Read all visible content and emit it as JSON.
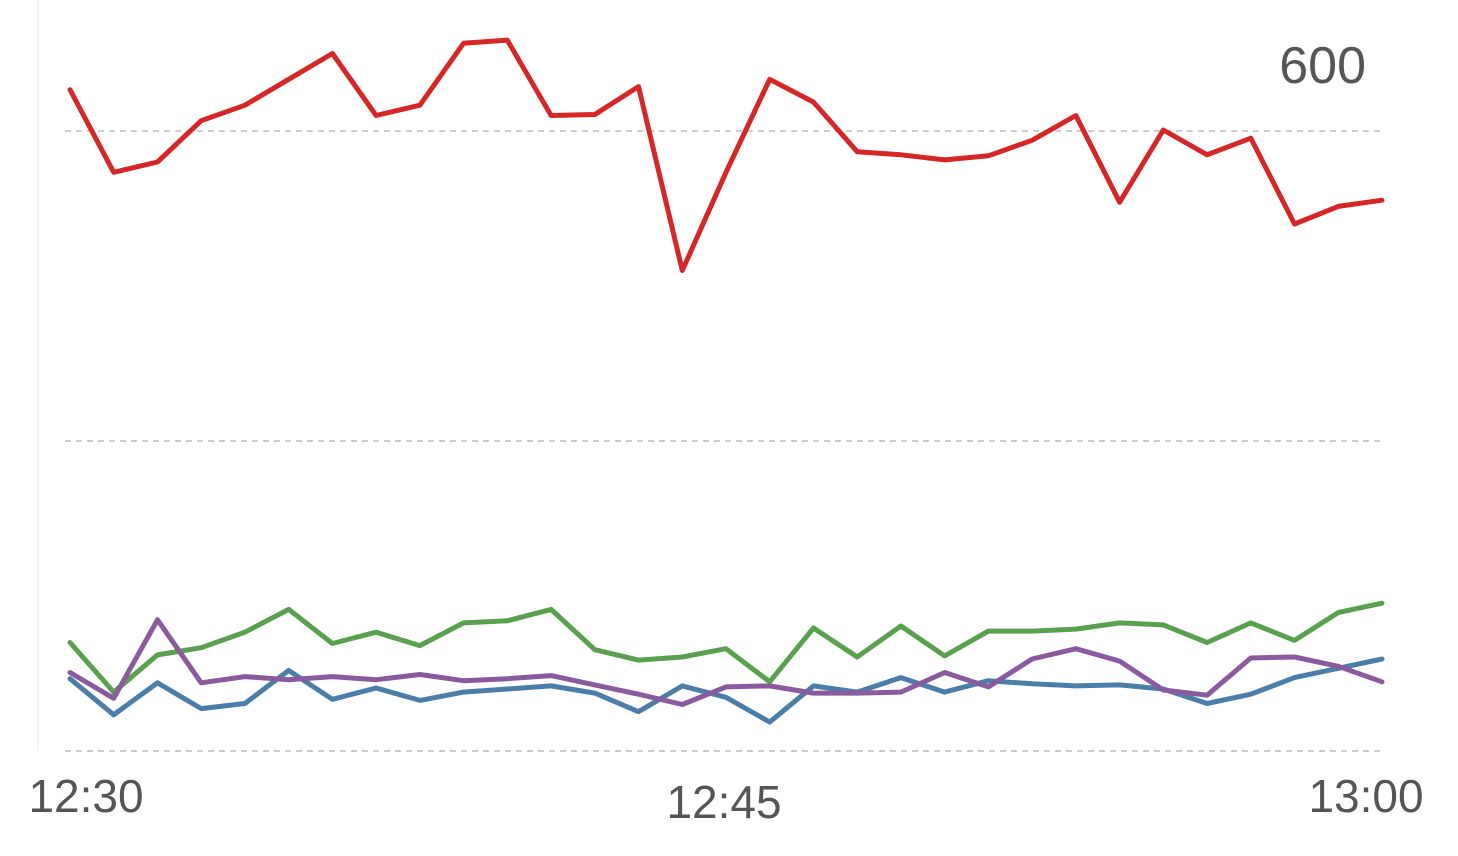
{
  "chart_data": {
    "type": "line",
    "x": [
      "12:30",
      "",
      "",
      "",
      "",
      "",
      "",
      "",
      "",
      "",
      "",
      "",
      "",
      "",
      "",
      "12:45",
      "",
      "",
      "",
      "",
      "",
      "",
      "",
      "",
      "",
      "",
      "",
      "",
      "",
      "",
      "13:00"
    ],
    "xticks": [
      {
        "index": 0,
        "label": "12:30"
      },
      {
        "index": 15,
        "label": "12:45"
      },
      {
        "index": 30,
        "label": "13:00"
      }
    ],
    "yticks": [
      {
        "value": 0,
        "label": ""
      },
      {
        "value": 300,
        "label": ""
      },
      {
        "value": 600,
        "label": "600"
      }
    ],
    "ylim": [
      0,
      600
    ],
    "grid": true,
    "series": [
      {
        "color": "#d62728",
        "values": [
          640,
          560,
          570,
          610,
          625,
          650,
          675,
          615,
          625,
          685,
          688,
          615,
          616,
          643,
          465,
          560,
          650,
          628,
          580,
          577,
          572,
          576,
          591,
          615,
          531,
          601,
          577,
          593,
          510,
          527,
          533
        ]
      },
      {
        "color": "#59a14f",
        "values": [
          105,
          57,
          93,
          100,
          115,
          137,
          104,
          115,
          102,
          124,
          126,
          137,
          98,
          88,
          91,
          99,
          67,
          119,
          91,
          121,
          92,
          116,
          116,
          118,
          124,
          122,
          105,
          124,
          107,
          134,
          143
        ]
      },
      {
        "color": "#4a7ea8",
        "values": [
          70,
          35,
          66,
          41,
          46,
          78,
          50,
          61,
          49,
          57,
          60,
          63,
          56,
          38,
          63,
          52,
          28,
          63,
          57,
          71,
          57,
          68,
          65,
          63,
          64,
          60,
          46,
          55,
          71,
          80,
          89
        ]
      },
      {
        "color": "#8a5a9e",
        "values": [
          76,
          51,
          127,
          66,
          72,
          69,
          72,
          69,
          74,
          68,
          70,
          73,
          64,
          55,
          45,
          62,
          63,
          56,
          56,
          57,
          76,
          62,
          89,
          99,
          87,
          59,
          54,
          90,
          91,
          82,
          67
        ]
      }
    ]
  }
}
